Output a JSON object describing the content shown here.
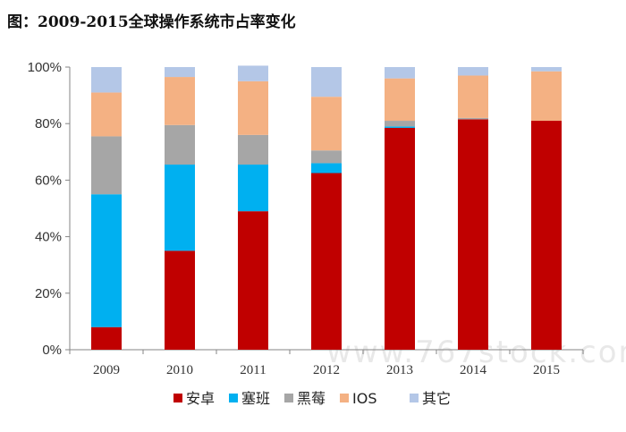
{
  "title": "图：2009-2015全球操作系统市占率变化",
  "watermark": "www.767stock.com",
  "chart_data": {
    "type": "bar",
    "stacked": true,
    "categories": [
      "2009",
      "2010",
      "2011",
      "2012",
      "2013",
      "2014",
      "2015"
    ],
    "series": [
      {
        "name": "安卓",
        "color": "#c00000",
        "values": [
          8,
          35,
          49,
          62.5,
          78.5,
          81.5,
          81
        ]
      },
      {
        "name": "塞班",
        "color": "#00b0f0",
        "values": [
          47,
          30.5,
          16.5,
          3.5,
          0.5,
          0,
          0
        ]
      },
      {
        "name": "黑莓",
        "color": "#a6a6a6",
        "values": [
          20.5,
          14,
          10.5,
          4.5,
          2,
          0.5,
          0
        ]
      },
      {
        "name": "IOS",
        "color": "#f4b183",
        "values": [
          15.5,
          17,
          19,
          19,
          15,
          15,
          17.5
        ]
      },
      {
        "name": "其它",
        "color": "#b4c7e7",
        "values": [
          9,
          3.5,
          5.5,
          10.5,
          4,
          3,
          1.5
        ]
      }
    ],
    "yticks": [
      "0%",
      "20%",
      "40%",
      "60%",
      "80%",
      "100%"
    ],
    "ylim": [
      0,
      100
    ],
    "legend_position": "bottom",
    "grid": false
  }
}
